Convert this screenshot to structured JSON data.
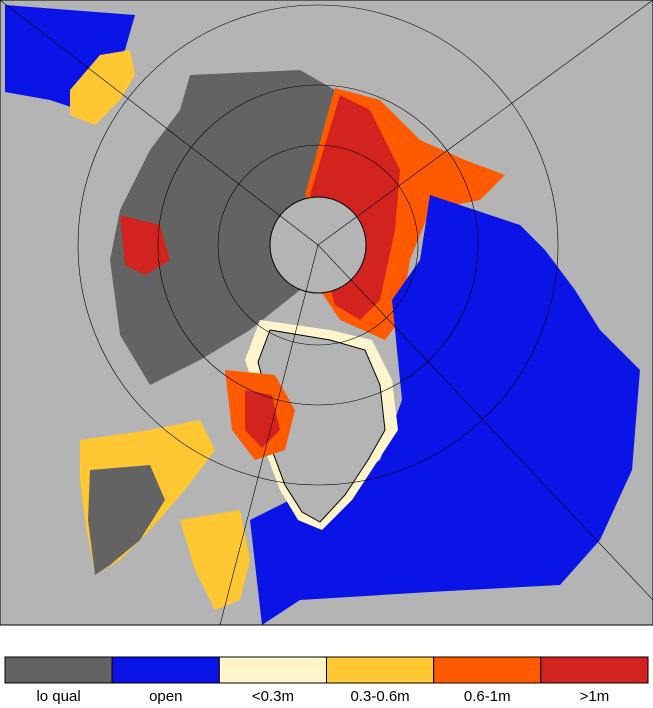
{
  "legend": {
    "items": [
      {
        "label": "lo qual",
        "color": "#636363"
      },
      {
        "label": "open",
        "color": "#0a14e6"
      },
      {
        "label": "<0.3m",
        "color": "#fff5cc"
      },
      {
        "label": "0.3-0.6m",
        "color": "#ffc832"
      },
      {
        "label": "0.6-1m",
        "color": "#ff5a00"
      },
      {
        "label": ">1m",
        "color": "#d2231e"
      }
    ]
  }
}
